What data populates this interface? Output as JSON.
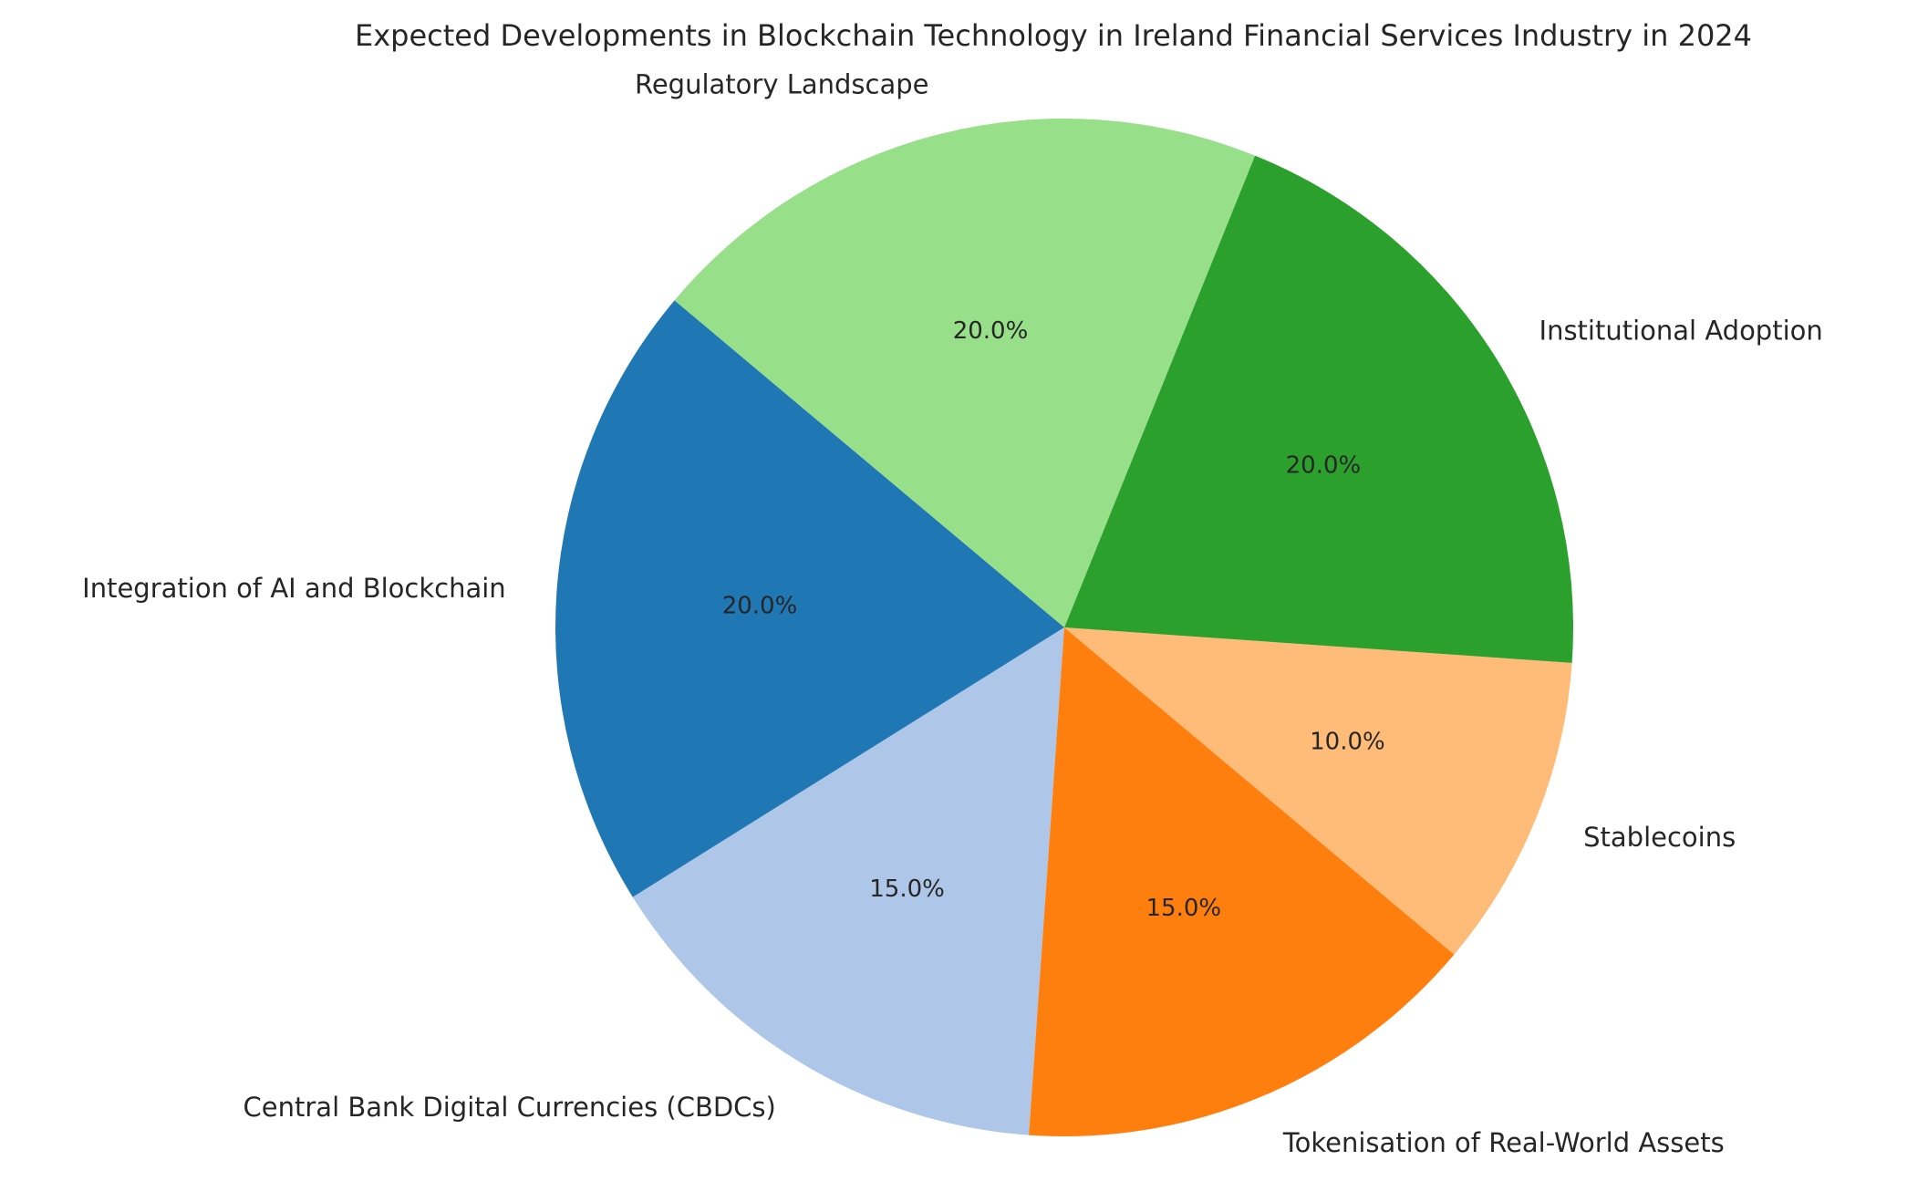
{
  "chart_data": {
    "type": "pie",
    "title": "Expected Developments in Blockchain Technology in Ireland Financial Services Industry in 2024",
    "start_angle_deg": 140,
    "direction": "counterclockwise",
    "slices": [
      {
        "label": "Integration of AI and Blockchain",
        "value": 20,
        "pct_label": "20.0%",
        "color": "#1f77b4"
      },
      {
        "label": "Central Bank Digital Currencies (CBDCs)",
        "value": 15,
        "pct_label": "15.0%",
        "color": "#aec7e8"
      },
      {
        "label": "Tokenisation of Real-World Assets",
        "value": 15,
        "pct_label": "15.0%",
        "color": "#ff7f0e"
      },
      {
        "label": "Stablecoins",
        "value": 10,
        "pct_label": "10.0%",
        "color": "#ffbb78"
      },
      {
        "label": "Institutional Adoption",
        "value": 20,
        "pct_label": "20.0%",
        "color": "#2ca02c"
      },
      {
        "label": "Regulatory Landscape",
        "value": 20,
        "pct_label": "20.0%",
        "color": "#98df8a"
      }
    ]
  }
}
